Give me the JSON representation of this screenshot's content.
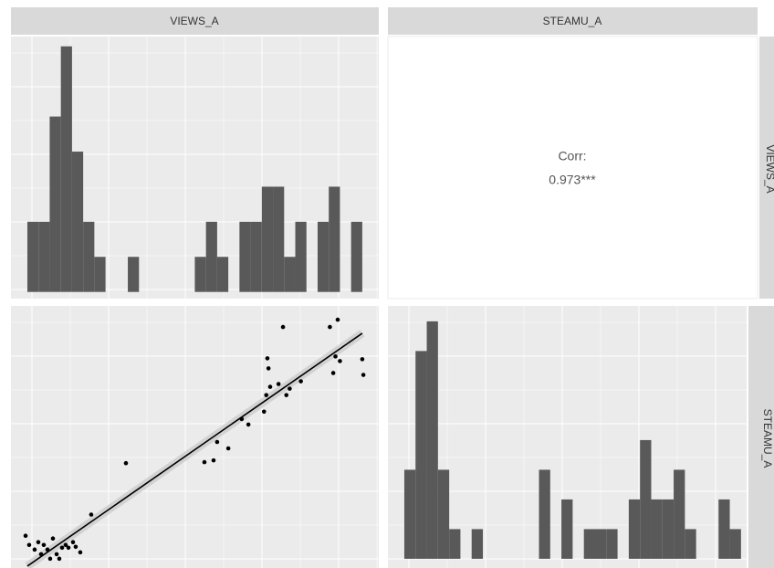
{
  "strips": {
    "columns": [
      "VIEWS_A",
      "STEAMU_A"
    ],
    "rows": [
      "VIEWS_A",
      "STEAMU_A"
    ]
  },
  "chart_data": [
    {
      "type": "histogram",
      "color": "#595959",
      "bins": [
        0,
        1,
        2,
        3,
        4,
        5,
        6,
        7,
        8,
        9,
        10,
        11,
        12,
        13,
        14,
        15,
        16,
        17,
        18,
        19,
        20,
        21,
        22,
        23,
        24,
        25,
        26,
        27,
        28,
        29,
        30
      ],
      "values": [
        2,
        2,
        5,
        7,
        4,
        2,
        1,
        0,
        0,
        1,
        0,
        0,
        0,
        0,
        0,
        1,
        2,
        1,
        0,
        2,
        2,
        3,
        3,
        1,
        2,
        0,
        2,
        3,
        0,
        2
      ],
      "xlim": [
        -1.47,
        31.48
      ],
      "ylim": [
        -0.19,
        7.28
      ]
    },
    {
      "type": "text",
      "label": "Corr:",
      "value_text": "0.973***"
    },
    {
      "type": "scatter",
      "color": "#000000",
      "x": [
        -0.16,
        0.16,
        0.65,
        0.98,
        1.23,
        1.47,
        1.8,
        2.04,
        2.29,
        2.62,
        2.86,
        3.11,
        3.43,
        3.68,
        4.09,
        4.33,
        4.74,
        5.72,
        8.83,
        15.86,
        16.68,
        17.0,
        18.0,
        19.2,
        19.8,
        21.2,
        21.4,
        21.5,
        21.6,
        21.75,
        22.5,
        22.9,
        23.2,
        23.5,
        24.5,
        27.1,
        27.4,
        27.6,
        27.8,
        28.0,
        30.0,
        30.1
      ],
      "y": [
        2.25,
        1.42,
        1.0,
        1.67,
        0.58,
        1.42,
        1.0,
        0.17,
        2.0,
        0.58,
        0.17,
        1.17,
        1.42,
        1.17,
        1.67,
        1.25,
        0.75,
        4.17,
        8.83,
        8.92,
        9.08,
        10.75,
        10.17,
        12.83,
        12.33,
        13.5,
        15.0,
        18.33,
        17.42,
        15.75,
        16.0,
        21.17,
        15.0,
        15.58,
        16.25,
        21.17,
        17.0,
        18.5,
        21.83,
        18.08,
        18.25,
        16.83
      ],
      "fit": {
        "x": [
          0,
          30
        ],
        "y": [
          -0.5,
          20.6
        ]
      },
      "xlim": [
        -1.47,
        31.48
      ],
      "ylim": [
        -0.67,
        23.08
      ]
    },
    {
      "type": "histogram",
      "color": "#595959",
      "bins": [
        0,
        1,
        2,
        3,
        4,
        5,
        6,
        7,
        8,
        9,
        10,
        11,
        12,
        13,
        14,
        15,
        16,
        17,
        18,
        19,
        20,
        21,
        22,
        23,
        24,
        25,
        26,
        27,
        28,
        29,
        30
      ],
      "values": [
        3,
        7,
        8,
        3,
        1,
        0,
        1,
        0,
        0,
        0,
        0,
        0,
        3,
        0,
        2,
        0,
        1,
        1,
        1,
        0,
        2,
        4,
        2,
        2,
        3,
        1,
        0,
        0,
        2,
        1
      ],
      "xlim": [
        -1.46,
        30.5
      ],
      "ylim": [
        -0.31,
        8.52
      ]
    }
  ]
}
